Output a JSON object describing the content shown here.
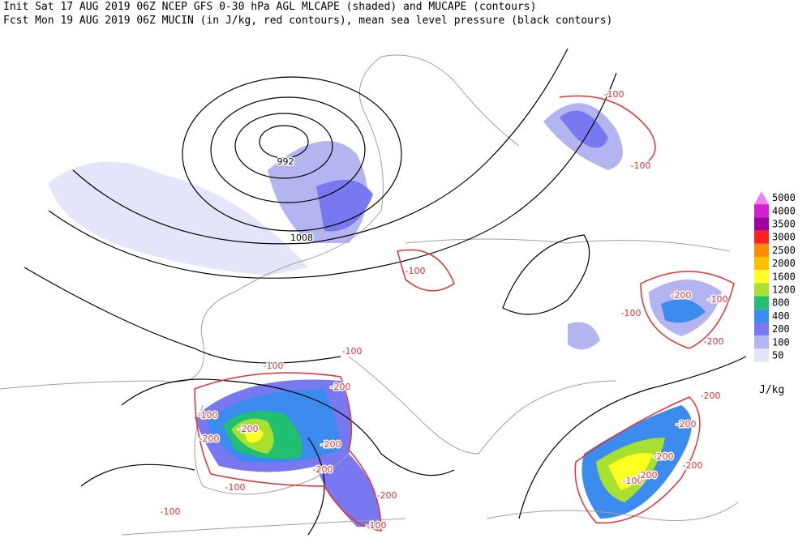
{
  "header": {
    "line1": "Init  Sat 17 AUG 2019 06Z  NCEP GFS 0-30 hPa AGL MLCAPE (shaded) and MUCAPE (contours)",
    "line2": "Fcst Mon 19 AUG 2019 06Z MUCIN (in J/kg, red contours), mean sea level pressure (black contours)"
  },
  "colorbar": {
    "levels": [
      {
        "value": 5000,
        "color": "#f080f0"
      },
      {
        "value": 4000,
        "color": "#d020d0"
      },
      {
        "value": 3500,
        "color": "#a000a0"
      },
      {
        "value": 3000,
        "color": "#ff2020"
      },
      {
        "value": 2500,
        "color": "#ff8c00"
      },
      {
        "value": 2000,
        "color": "#ffc000"
      },
      {
        "value": 1600,
        "color": "#ffff20"
      },
      {
        "value": 1200,
        "color": "#a8e030"
      },
      {
        "value": 800,
        "color": "#20c070"
      },
      {
        "value": 400,
        "color": "#3c8cf0"
      },
      {
        "value": 200,
        "color": "#7878f0"
      },
      {
        "value": 100,
        "color": "#b4b4f0"
      },
      {
        "value": 50,
        "color": "#e4e4fa"
      }
    ],
    "unit": "J/kg"
  },
  "contour_labels": {
    "pressure": [
      992,
      1008
    ],
    "mucin": [
      -100,
      -100,
      -100,
      -200,
      -100,
      -100,
      -200,
      -100,
      -100,
      -200,
      -200,
      -100,
      -200,
      -200,
      -200,
      -100,
      -200,
      -100,
      -100,
      -200,
      -200,
      -200,
      -200,
      -100,
      -200
    ]
  }
}
